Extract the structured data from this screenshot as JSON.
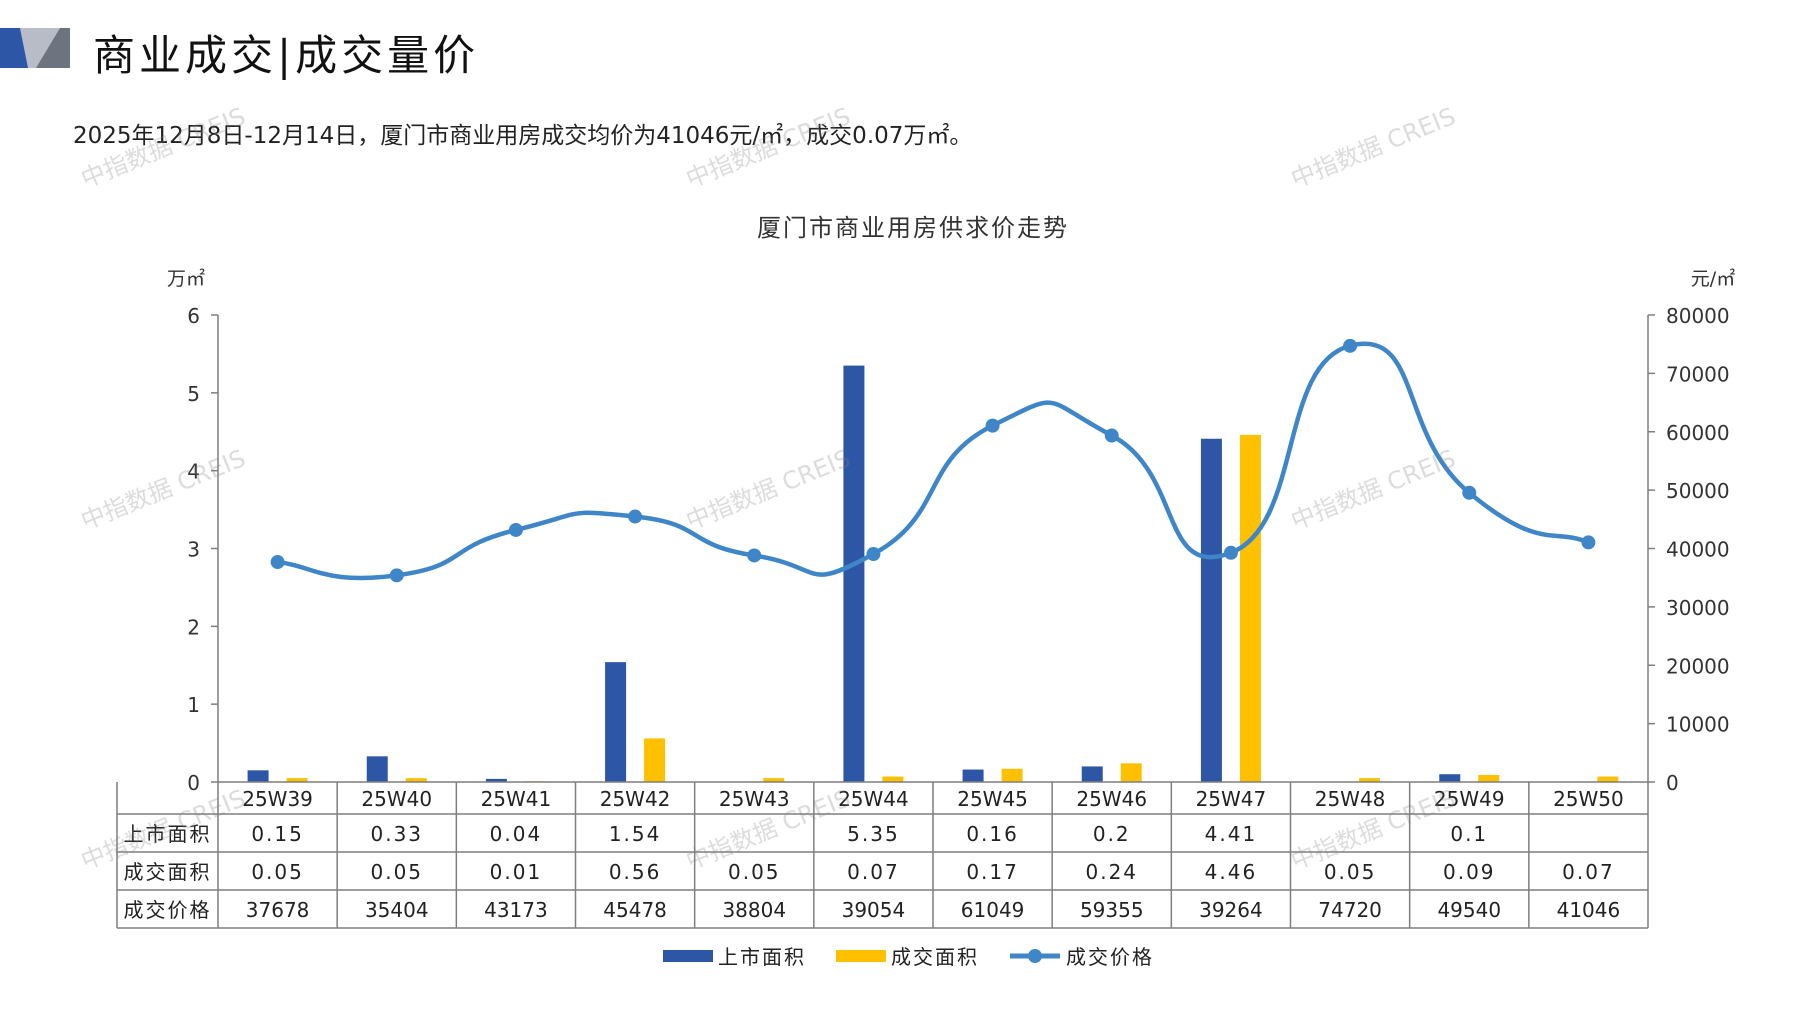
{
  "header": {
    "title": "商业成交|成交量价",
    "summary": "2025年12月8日-12月14日，厦门市商业用房成交均价为41046元/㎡，成交0.07万㎡。"
  },
  "watermark": "中指数据 CREIS",
  "colors": {
    "supply": "#2E56A6",
    "deal": "#FFC000",
    "price": "#3F86C9",
    "grid_border": "#7f7f7f"
  },
  "chart_data": {
    "type": "bar",
    "title": "厦门市商业用房供求价走势",
    "ylabel_left": "万㎡",
    "ylabel_right": "元/㎡",
    "y_left_range": [
      0,
      6
    ],
    "y_left_ticks": [
      "0",
      "1",
      "2",
      "3",
      "4",
      "5",
      "6"
    ],
    "y_right_range": [
      0,
      80000
    ],
    "y_right_ticks": [
      "0",
      "10000",
      "20000",
      "30000",
      "40000",
      "50000",
      "60000",
      "70000",
      "80000"
    ],
    "categories": [
      "25W39",
      "25W40",
      "25W41",
      "25W42",
      "25W43",
      "25W44",
      "25W45",
      "25W46",
      "25W47",
      "25W48",
      "25W49",
      "25W50"
    ],
    "series": [
      {
        "name": "上市面积",
        "kind": "bar",
        "axis": "left",
        "values": [
          0.15,
          0.33,
          0.04,
          1.54,
          null,
          5.35,
          0.16,
          0.2,
          4.41,
          null,
          0.1,
          null
        ],
        "labels": [
          "0.15",
          "0.33",
          "0.04",
          "1.54",
          "",
          "5.35",
          "0.16",
          "0.2",
          "4.41",
          "",
          "0.1",
          ""
        ]
      },
      {
        "name": "成交面积",
        "kind": "bar",
        "axis": "left",
        "values": [
          0.05,
          0.05,
          0.01,
          0.56,
          0.05,
          0.07,
          0.17,
          0.24,
          4.46,
          0.05,
          0.09,
          0.07
        ],
        "labels": [
          "0.05",
          "0.05",
          "0.01",
          "0.56",
          "0.05",
          "0.07",
          "0.17",
          "0.24",
          "4.46",
          "0.05",
          "0.09",
          "0.07"
        ]
      },
      {
        "name": "成交价格",
        "kind": "line",
        "axis": "right",
        "values": [
          37678,
          35404,
          43173,
          45478,
          38804,
          39054,
          61049,
          59355,
          39264,
          74720,
          49540,
          41046
        ],
        "labels": [
          "37678",
          "35404",
          "43173",
          "45478",
          "38804",
          "39054",
          "61049",
          "59355",
          "39264",
          "74720",
          "49540",
          "41046"
        ]
      }
    ],
    "legend_position": "bottom"
  }
}
